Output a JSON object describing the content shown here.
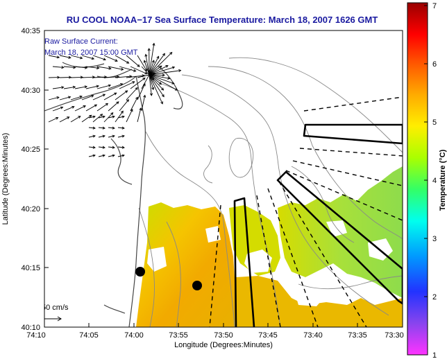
{
  "title": "RU COOL  NOAA−17  Sea Surface Temperature:  March 18, 2007 1626 GMT",
  "annotation": {
    "line1": "Raw Surface Current:",
    "line2": "March 18, 2007 15:00 GMT"
  },
  "scale_label": "50 cm/s",
  "x_axis": {
    "label": "Longitude (Degrees:Minutes)",
    "ticks": [
      "74:10",
      "74:05",
      "74:00",
      "73:55",
      "73:50",
      "73:45",
      "73:40",
      "73:35",
      "73:30"
    ]
  },
  "y_axis": {
    "label": "Latitude (Degrees:Minutes)",
    "ticks": [
      "40:35",
      "40:30",
      "40:25",
      "40:20",
      "40:15",
      "40:10"
    ]
  },
  "colorbar": {
    "label": "Temperature (°C)",
    "ticks": [
      "7",
      "6",
      "5",
      "4",
      "3",
      "2",
      "1"
    ],
    "min": 1,
    "max": 7,
    "colors": [
      "#ff33ff",
      "#8844ee",
      "#0022ff",
      "#0099ff",
      "#00ffee",
      "#33ff66",
      "#aaff00",
      "#ffee00",
      "#ffaa00",
      "#ff5500",
      "#ff0000",
      "#990000"
    ]
  },
  "map": {
    "water_color": "#ffffff",
    "sst_colors": [
      "#f2a900",
      "#f5c400",
      "#d9d900",
      "#c6e000",
      "#9fe044"
    ]
  }
}
